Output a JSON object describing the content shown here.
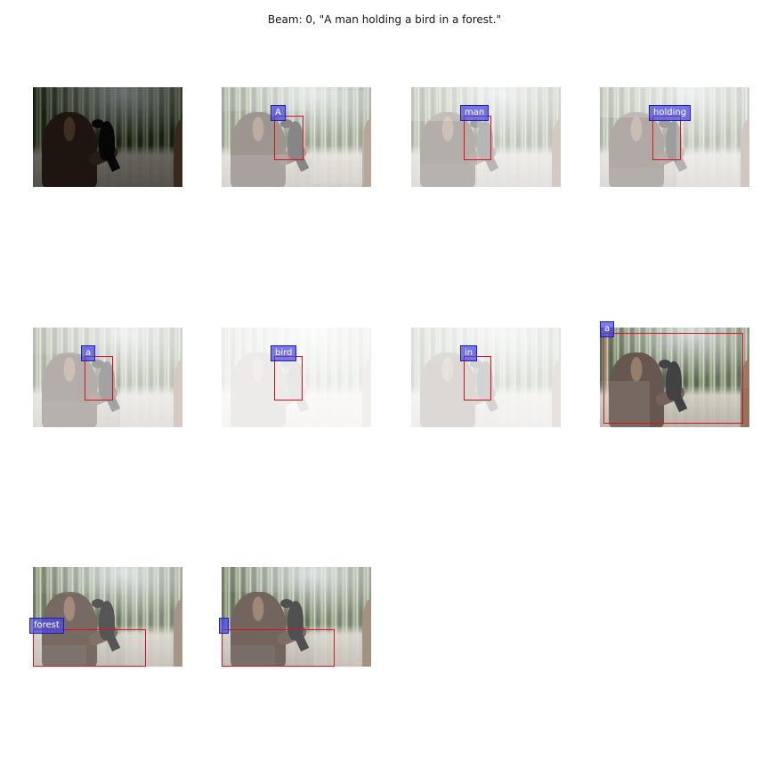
{
  "figure": {
    "title": "Beam: 0, \"A man holding a bird in a forest.\""
  },
  "panels": [
    {
      "word": "",
      "kind": "original"
    },
    {
      "word": "A",
      "kind": "attention"
    },
    {
      "word": "man",
      "kind": "attention"
    },
    {
      "word": "holding",
      "kind": "attention"
    },
    {
      "word": "a",
      "kind": "attention"
    },
    {
      "word": "bird",
      "kind": "attention"
    },
    {
      "word": "in",
      "kind": "attention"
    },
    {
      "word": "a",
      "kind": "attention"
    },
    {
      "word": "forest",
      "kind": "attention"
    },
    {
      "word": "",
      "kind": "attention"
    }
  ],
  "colors": {
    "box_border": "#e0101a",
    "tag_fill": "#4848e0",
    "tag_border": "#1f1fa8",
    "tag_text": "#ffffff"
  }
}
